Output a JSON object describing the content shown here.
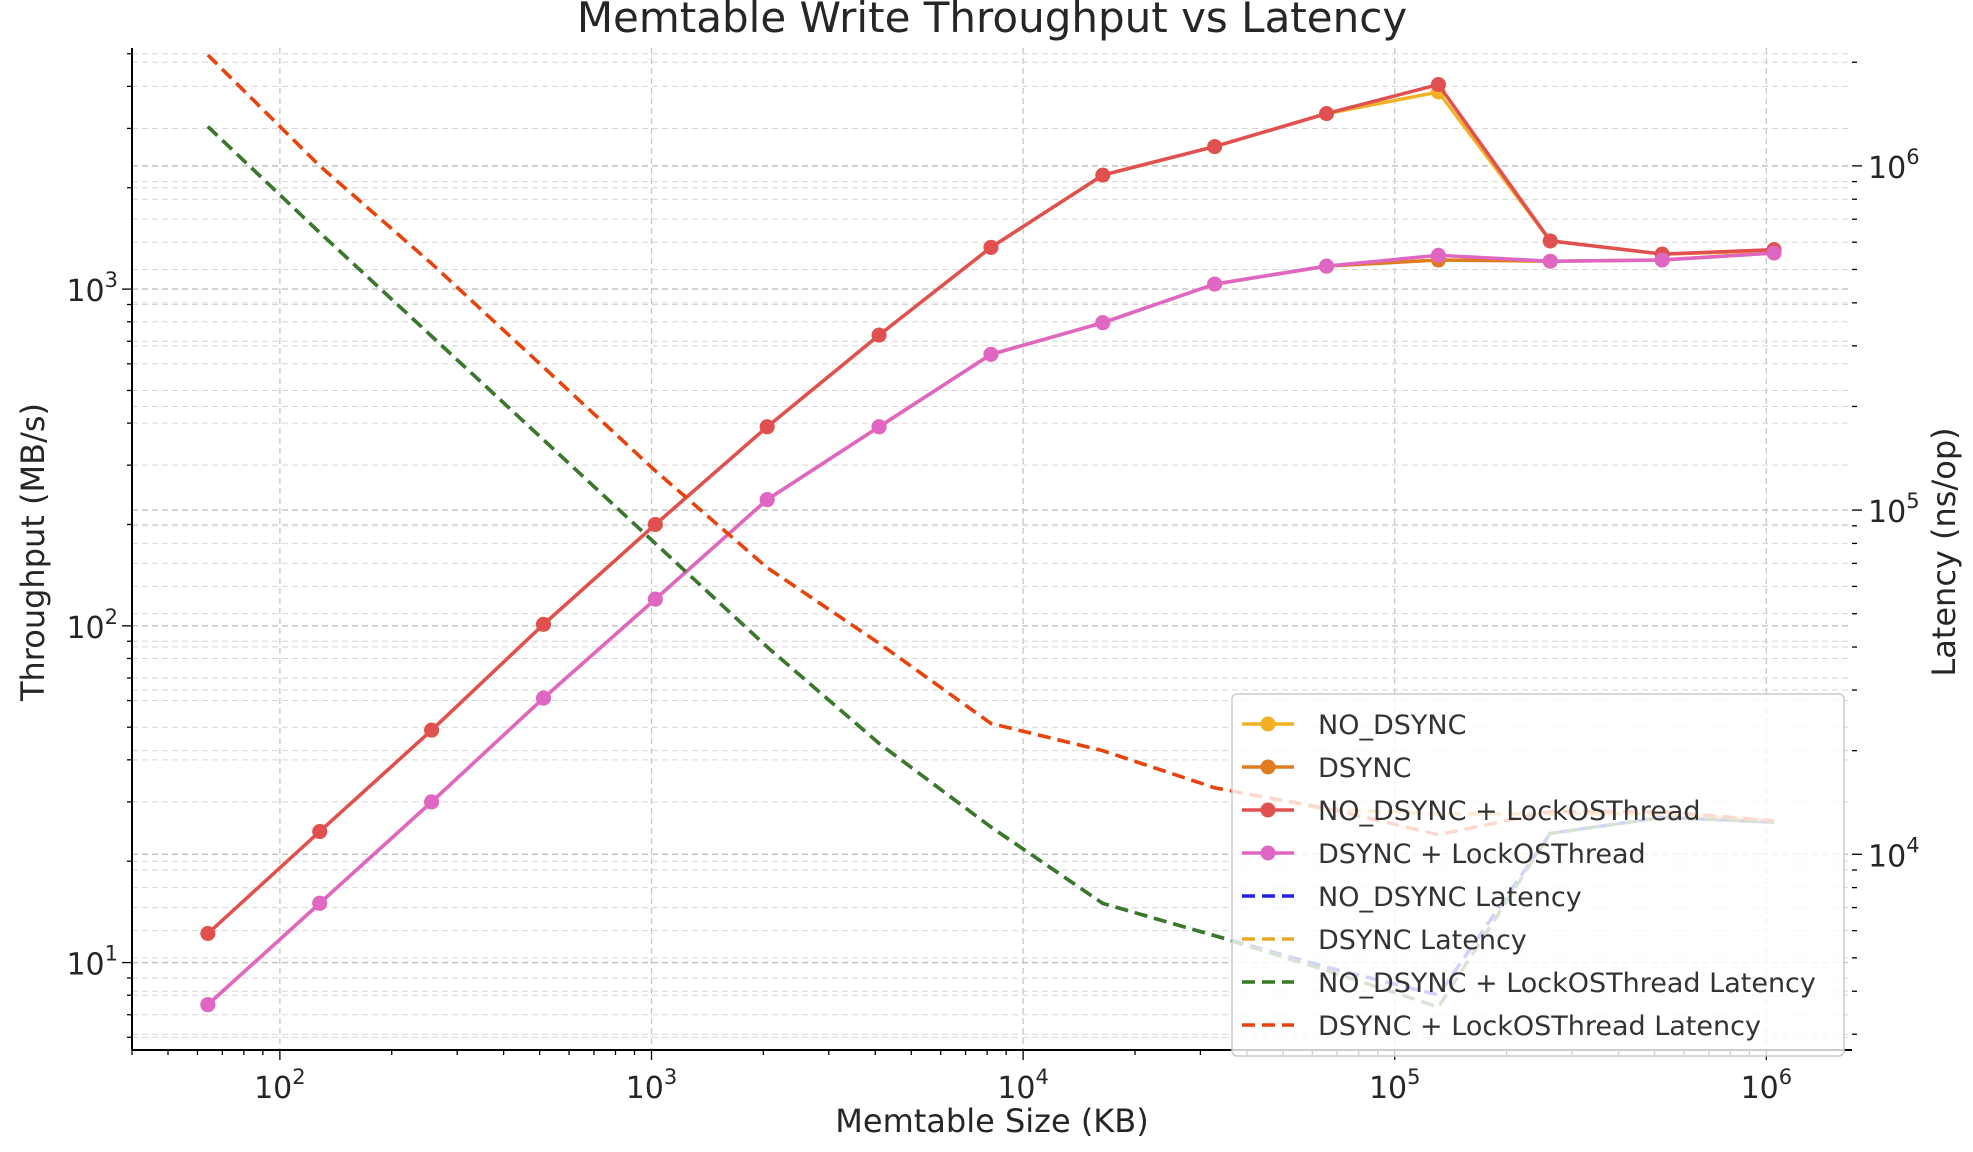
{
  "chart_data": {
    "type": "line",
    "title": "Memtable Write Throughput vs Latency",
    "xlabel": "Memtable Size (KB)",
    "ylabel": "Throughput (MB/s)",
    "y2label": "Latency (ns/op)",
    "x_scale": "log",
    "y_scale": "log",
    "y2_scale": "log",
    "xlim": [
      40,
      1700000
    ],
    "ylim": [
      5.5,
      5200
    ],
    "y2lim": [
      2700,
      2200000
    ],
    "x_ticks": [
      {
        "value": 100,
        "base": "10",
        "exp": "2"
      },
      {
        "value": 1000,
        "base": "10",
        "exp": "3"
      },
      {
        "value": 10000,
        "base": "10",
        "exp": "4"
      },
      {
        "value": 100000,
        "base": "10",
        "exp": "5"
      },
      {
        "value": 1000000,
        "base": "10",
        "exp": "6"
      }
    ],
    "y_ticks": [
      {
        "value": 10,
        "base": "10",
        "exp": "1"
      },
      {
        "value": 100,
        "base": "10",
        "exp": "2"
      },
      {
        "value": 1000,
        "base": "10",
        "exp": "3"
      }
    ],
    "y2_ticks": [
      {
        "value": 10000,
        "base": "10",
        "exp": "4"
      },
      {
        "value": 100000,
        "base": "10",
        "exp": "5"
      },
      {
        "value": 1000000,
        "base": "10",
        "exp": "6"
      }
    ],
    "grid": true,
    "legend_position": "lower-right",
    "x": [
      64,
      128,
      256,
      512,
      1024,
      2048,
      4096,
      8192,
      16384,
      32768,
      65536,
      131072,
      262144,
      524288,
      1048576
    ],
    "series": [
      {
        "name": "NO_DSYNC",
        "axis": "left",
        "style": "solid-marker",
        "color": "#f2b124",
        "values": [
          12.2,
          24.5,
          49,
          101,
          200,
          390,
          730,
          1330,
          2180,
          2650,
          3320,
          3850,
          1390,
          1270,
          1300
        ]
      },
      {
        "name": "DSYNC",
        "axis": "left",
        "style": "solid-marker",
        "color": "#e07b1f",
        "values": [
          7.5,
          15,
          30,
          61,
          120,
          237,
          390,
          640,
          795,
          1035,
          1170,
          1220,
          1210,
          1220,
          1280
        ]
      },
      {
        "name": "NO_DSYNC + LockOSThread",
        "axis": "left",
        "style": "solid-marker",
        "color": "#e05050",
        "values": [
          12.2,
          24.5,
          49,
          101,
          200,
          390,
          730,
          1330,
          2180,
          2650,
          3320,
          4050,
          1390,
          1270,
          1310
        ]
      },
      {
        "name": "DSYNC + LockOSThread",
        "axis": "left",
        "style": "solid-marker",
        "color": "#e066c4",
        "values": [
          7.5,
          15,
          30,
          61,
          120,
          237,
          390,
          640,
          795,
          1035,
          1170,
          1260,
          1210,
          1220,
          1280
        ]
      },
      {
        "name": "NO_DSYNC Latency",
        "axis": "right",
        "style": "dashed",
        "color": "#2222e6",
        "values": [
          1300000,
          640000,
          320000,
          160000,
          80000,
          40000,
          21000,
          12000,
          7200,
          5800,
          4700,
          3900,
          11500,
          12800,
          12400
        ]
      },
      {
        "name": "DSYNC Latency",
        "axis": "right",
        "style": "dashed",
        "color": "#e8a82a",
        "values": [
          2100000,
          1000000,
          520000,
          260000,
          130000,
          68000,
          41000,
          24000,
          20000,
          15600,
          13500,
          13100,
          13100,
          13100,
          12500
        ]
      },
      {
        "name": "NO_DSYNC + LockOSThread Latency",
        "axis": "right",
        "style": "dashed",
        "color": "#3a7a24",
        "values": [
          1300000,
          640000,
          320000,
          160000,
          80000,
          40000,
          21000,
          12000,
          7200,
          5800,
          4600,
          3600,
          11500,
          12800,
          12400
        ]
      },
      {
        "name": "DSYNC + LockOSThread Latency",
        "axis": "right",
        "style": "dashed",
        "color": "#e8420f",
        "values": [
          2100000,
          1000000,
          520000,
          260000,
          130000,
          68000,
          41000,
          24000,
          20000,
          15600,
          13600,
          11400,
          13300,
          13300,
          12500
        ]
      }
    ]
  }
}
